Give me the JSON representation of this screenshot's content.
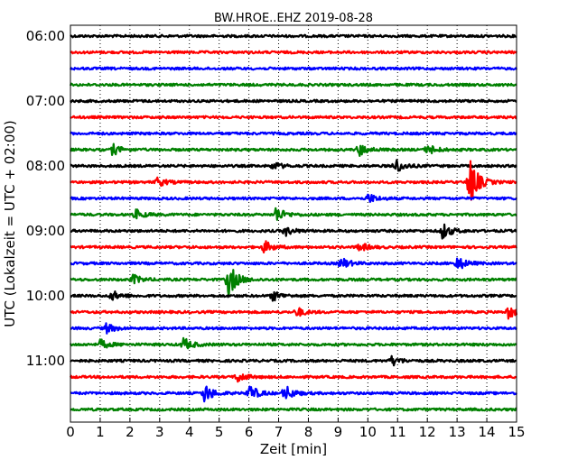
{
  "chart_data": {
    "type": "line",
    "title": "BW.HROE..EHZ 2019-08-28",
    "xlabel": "Zeit  [min]",
    "ylabel": "UTC (Lokalzeit = UTC + 02:00)",
    "xlim": [
      0,
      15
    ],
    "x_ticks": [
      "0",
      "1",
      "2",
      "3",
      "4",
      "5",
      "6",
      "7",
      "8",
      "9",
      "10",
      "11",
      "12",
      "13",
      "14",
      "15"
    ],
    "y_tick_labels": [
      "06:00",
      "07:00",
      "08:00",
      "09:00",
      "10:00",
      "11:00"
    ],
    "grid": "vertical dotted",
    "trace_interval_min": 15,
    "trace_colors": [
      "#000000",
      "#ff0000",
      "#0000ff",
      "#008000"
    ],
    "traces": [
      {
        "start": "06:00",
        "events": []
      },
      {
        "start": "06:15",
        "events": []
      },
      {
        "start": "06:30",
        "events": []
      },
      {
        "start": "06:45",
        "events": []
      },
      {
        "start": "07:00",
        "events": []
      },
      {
        "start": "07:15",
        "events": []
      },
      {
        "start": "07:30",
        "events": []
      },
      {
        "start": "07:45",
        "events": [
          {
            "t": 1.4,
            "amp": 0.35
          },
          {
            "t": 9.7,
            "amp": 0.4
          },
          {
            "t": 12.0,
            "amp": 0.35
          }
        ]
      },
      {
        "start": "08:00",
        "events": [
          {
            "t": 10.9,
            "amp": 0.5
          },
          {
            "t": 6.8,
            "amp": 0.25
          }
        ]
      },
      {
        "start": "08:15",
        "events": [
          {
            "t": 13.4,
            "amp": 1.6
          },
          {
            "t": 2.9,
            "amp": 0.3
          }
        ]
      },
      {
        "start": "08:30",
        "events": [
          {
            "t": 10.0,
            "amp": 0.3
          }
        ]
      },
      {
        "start": "08:45",
        "events": [
          {
            "t": 6.9,
            "amp": 0.5
          },
          {
            "t": 2.2,
            "amp": 0.3
          }
        ]
      },
      {
        "start": "09:00",
        "events": [
          {
            "t": 12.5,
            "amp": 0.5
          },
          {
            "t": 7.2,
            "amp": 0.3
          }
        ]
      },
      {
        "start": "09:15",
        "events": [
          {
            "t": 6.5,
            "amp": 0.4
          },
          {
            "t": 9.7,
            "amp": 0.3
          }
        ]
      },
      {
        "start": "09:30",
        "events": [
          {
            "t": 13.0,
            "amp": 0.45
          },
          {
            "t": 9.1,
            "amp": 0.35
          }
        ]
      },
      {
        "start": "09:45",
        "events": [
          {
            "t": 5.3,
            "amp": 1.1
          },
          {
            "t": 2.1,
            "amp": 0.3
          }
        ]
      },
      {
        "start": "10:00",
        "events": [
          {
            "t": 6.8,
            "amp": 0.3
          },
          {
            "t": 1.4,
            "amp": 0.3
          }
        ]
      },
      {
        "start": "10:15",
        "events": [
          {
            "t": 14.7,
            "amp": 0.4
          },
          {
            "t": 7.6,
            "amp": 0.3
          }
        ]
      },
      {
        "start": "10:30",
        "events": [
          {
            "t": 1.2,
            "amp": 0.3
          }
        ]
      },
      {
        "start": "10:45",
        "events": [
          {
            "t": 3.8,
            "amp": 0.4
          },
          {
            "t": 1.0,
            "amp": 0.3
          }
        ]
      },
      {
        "start": "11:00",
        "events": [
          {
            "t": 10.8,
            "amp": 0.3
          }
        ]
      },
      {
        "start": "11:15",
        "events": [
          {
            "t": 5.6,
            "amp": 0.35
          }
        ]
      },
      {
        "start": "11:30",
        "events": [
          {
            "t": 4.5,
            "amp": 0.6
          },
          {
            "t": 6.0,
            "amp": 0.55
          },
          {
            "t": 7.2,
            "amp": 0.5
          }
        ]
      },
      {
        "start": "11:45",
        "events": []
      }
    ]
  }
}
